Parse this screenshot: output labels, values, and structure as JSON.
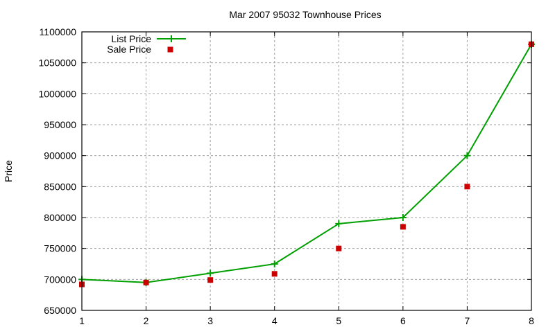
{
  "chart_data": {
    "type": "line",
    "title": "Mar 2007 95032 Townhouse Prices",
    "xlabel": "",
    "ylabel": "Price",
    "xlim": [
      1,
      8
    ],
    "ylim": [
      650000,
      1100000
    ],
    "x_ticks": [
      "1",
      "2",
      "3",
      "4",
      "5",
      "6",
      "7",
      "8"
    ],
    "y_ticks": [
      "650000",
      "700000",
      "750000",
      "800000",
      "850000",
      "900000",
      "950000",
      "1000000",
      "1050000",
      "1100000"
    ],
    "grid": true,
    "legend_placement": "top-left",
    "x": [
      1,
      2,
      3,
      4,
      5,
      6,
      7,
      8
    ],
    "series": [
      {
        "name": "List Price",
        "style": "linespoints",
        "marker": "plus",
        "color": "#00a000",
        "values": [
          700000,
          695000,
          710000,
          725000,
          790000,
          800000,
          900000,
          1080000
        ]
      },
      {
        "name": "Sale Price",
        "style": "points",
        "marker": "square",
        "color": "#cc0000",
        "values": [
          692000,
          695000,
          699000,
          709000,
          750000,
          785000,
          850000,
          1080000
        ]
      }
    ]
  }
}
